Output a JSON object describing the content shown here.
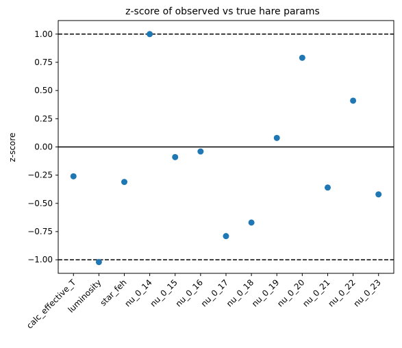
{
  "chart_data": {
    "type": "scatter",
    "title": "z-score of observed vs true hare params",
    "xlabel": "",
    "ylabel": "z-score",
    "categories": [
      "calc_effective_T",
      "luminosity",
      "star_feh",
      "nu_0_14",
      "nu_0_15",
      "nu_0_16",
      "nu_0_17",
      "nu_0_18",
      "nu_0_19",
      "nu_0_20",
      "nu_0_21",
      "nu_0_22",
      "nu_0_23"
    ],
    "values": [
      -0.26,
      -1.02,
      -0.31,
      1.0,
      -0.09,
      -0.04,
      -0.79,
      -0.67,
      0.08,
      0.79,
      -0.36,
      0.41,
      -0.42
    ],
    "ylim": [
      -1.12,
      1.12
    ],
    "yticks": [
      -1.0,
      -0.75,
      -0.5,
      -0.25,
      0.0,
      0.25,
      0.5,
      0.75,
      1.0
    ],
    "ytick_labels": [
      "−1.00",
      "−0.75",
      "−0.50",
      "−0.25",
      "0.00",
      "0.25",
      "0.50",
      "0.75",
      "1.00"
    ],
    "reference_lines": [
      {
        "y": 1.0,
        "style": "dashed"
      },
      {
        "y": 0.0,
        "style": "solid"
      },
      {
        "y": -1.0,
        "style": "dashed"
      }
    ],
    "grid": false,
    "marker_color": "#1f77b4",
    "line_color": "#000000"
  }
}
